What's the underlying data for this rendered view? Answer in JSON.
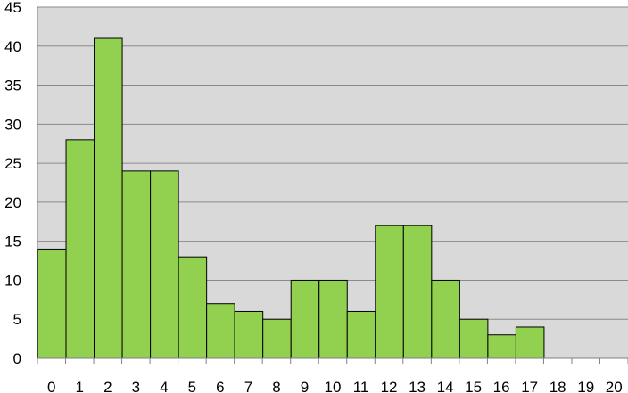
{
  "chart_data": {
    "type": "bar",
    "categories": [
      "0",
      "1",
      "2",
      "3",
      "4",
      "5",
      "6",
      "7",
      "8",
      "9",
      "10",
      "11",
      "12",
      "13",
      "14",
      "15",
      "16",
      "17",
      "18",
      "19",
      "20"
    ],
    "values": [
      14,
      28,
      41,
      24,
      24,
      13,
      7,
      6,
      5,
      10,
      10,
      6,
      17,
      17,
      10,
      5,
      3,
      4,
      0,
      0,
      0
    ],
    "title": "",
    "xlabel": "",
    "ylabel": "",
    "ylim": [
      0,
      45
    ],
    "yticks": [
      "0",
      "5",
      "10",
      "15",
      "20",
      "25",
      "30",
      "35",
      "40",
      "45"
    ],
    "grid": true,
    "legend": "none",
    "bar_color": "#92D050",
    "plot_background": "#D9D9D9"
  }
}
